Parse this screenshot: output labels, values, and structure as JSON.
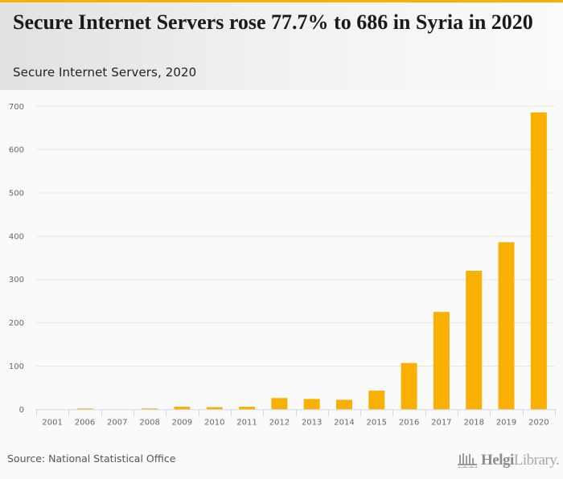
{
  "header": {
    "title": "Secure Internet Servers rose 77.7% to 686 in Syria in 2020",
    "subtitle": "Secure Internet Servers, 2020"
  },
  "colors": {
    "accent": "#FAB000",
    "bar": "#FAB000",
    "grid": "#e6e6e6",
    "axis": "#ccd6eb"
  },
  "chart_data": {
    "type": "bar",
    "title": "Secure Internet Servers rose 77.7% to 686 in Syria in 2020",
    "subtitle": "Secure Internet Servers, 2020",
    "xlabel": "",
    "ylabel": "",
    "categories": [
      "2001",
      "2006",
      "2007",
      "2008",
      "2009",
      "2010",
      "2011",
      "2012",
      "2013",
      "2014",
      "2015",
      "2016",
      "2017",
      "2018",
      "2019",
      "2020"
    ],
    "values": [
      0,
      2,
      0,
      2,
      6,
      5,
      6,
      26,
      24,
      22,
      43,
      107,
      225,
      320,
      386,
      686
    ],
    "ylim": [
      0,
      700
    ],
    "yticks": [
      0,
      100,
      200,
      300,
      400,
      500,
      600,
      700
    ],
    "grid": true,
    "legend": "none"
  },
  "footer": {
    "source": "Source: National Statistical Office",
    "logo_icon": "library-building-icon",
    "logo_bold": "Helgi",
    "logo_light": "Library."
  }
}
